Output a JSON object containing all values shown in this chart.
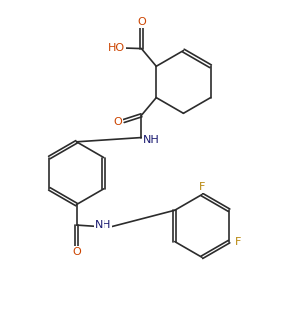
{
  "bg_color": "#ffffff",
  "line_color": "#2c2c2c",
  "label_color_F": "#b8860b",
  "label_color_O": "#cc4400",
  "label_color_N": "#191970",
  "figsize": [
    2.87,
    3.15
  ],
  "dpi": 100,
  "xlim": [
    0,
    10
  ],
  "ylim": [
    0,
    11
  ]
}
